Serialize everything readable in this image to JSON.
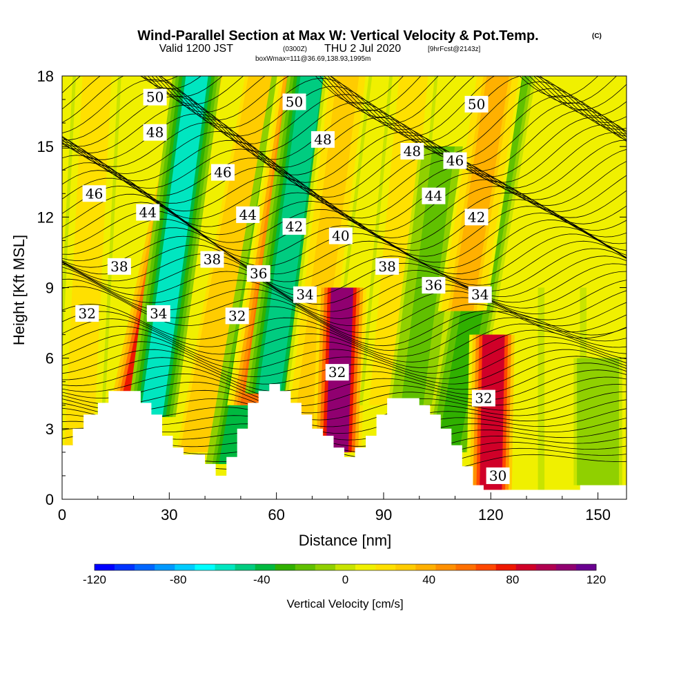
{
  "header": {
    "title": "Wind-Parallel Section at Max W: Vertical Velocity & Pot.Temp.",
    "copyright": "(C)",
    "valid_prefix": "Valid 1200 JST",
    "valid_z": "(0300Z)",
    "valid_date": "THU 2 Jul 2020",
    "forecast": "[9hrFcst@2143z]",
    "boxinfo": "boxWmax=111@36.69,138.93,1995m"
  },
  "chart_data": {
    "type": "heatmap",
    "xlabel": "Distance [nm]",
    "ylabel": "Height [Kft MSL]",
    "xlim": [
      0,
      158
    ],
    "ylim": [
      0,
      18
    ],
    "x_ticks": [
      0,
      30,
      60,
      90,
      120,
      150
    ],
    "y_ticks": [
      0,
      3,
      6,
      9,
      12,
      15,
      18
    ],
    "colorbar": {
      "label": "Vertical Velocity [cm/s]",
      "ticks": [
        -120,
        -80,
        -40,
        0,
        40,
        80,
        120
      ],
      "range": [
        -120,
        120
      ],
      "step": 10,
      "colors": [
        "#0000ff",
        "#0033ff",
        "#0066ff",
        "#0099ff",
        "#00ccff",
        "#00ffff",
        "#00e6c0",
        "#00cc80",
        "#00b940",
        "#30b000",
        "#60c000",
        "#90d000",
        "#c8e400",
        "#f0f000",
        "#ffe000",
        "#ffcc00",
        "#ffb000",
        "#ff9000",
        "#ff7000",
        "#ff4800",
        "#ee1800",
        "#d00028",
        "#b00050",
        "#900070",
        "#6a0090"
      ]
    },
    "terrain_kft": [
      [
        0,
        2.3
      ],
      [
        3,
        2.3
      ],
      [
        3,
        3
      ],
      [
        6,
        3
      ],
      [
        6,
        3.6
      ],
      [
        10,
        3.6
      ],
      [
        10,
        4.1
      ],
      [
        13,
        4.1
      ],
      [
        13,
        4.6
      ],
      [
        22,
        4.6
      ],
      [
        22,
        4.1
      ],
      [
        25,
        4.1
      ],
      [
        25,
        3.6
      ],
      [
        28,
        3.6
      ],
      [
        28,
        2.7
      ],
      [
        31,
        2.7
      ],
      [
        31,
        2.2
      ],
      [
        34,
        2.2
      ],
      [
        34,
        1.9
      ],
      [
        40,
        1.9
      ],
      [
        40,
        1.5
      ],
      [
        43,
        1.5
      ],
      [
        43,
        1.0
      ],
      [
        46,
        1.0
      ],
      [
        46,
        1.8
      ],
      [
        49,
        1.8
      ],
      [
        49,
        3.0
      ],
      [
        52,
        3.0
      ],
      [
        52,
        4.1
      ],
      [
        55,
        4.1
      ],
      [
        55,
        4.6
      ],
      [
        58,
        4.6
      ],
      [
        58,
        4.9
      ],
      [
        61,
        4.9
      ],
      [
        61,
        4.6
      ],
      [
        64,
        4.6
      ],
      [
        64,
        4.1
      ],
      [
        67,
        4.1
      ],
      [
        67,
        3.6
      ],
      [
        70,
        3.6
      ],
      [
        70,
        3.0
      ],
      [
        73,
        3.0
      ],
      [
        73,
        2.7
      ],
      [
        76,
        2.7
      ],
      [
        76,
        2.2
      ],
      [
        79,
        2.2
      ],
      [
        79,
        1.8
      ],
      [
        82,
        1.8
      ],
      [
        82,
        2.2
      ],
      [
        85,
        2.2
      ],
      [
        85,
        2.7
      ],
      [
        88,
        2.7
      ],
      [
        88,
        3.6
      ],
      [
        91,
        3.6
      ],
      [
        91,
        4.3
      ],
      [
        100,
        4.3
      ],
      [
        100,
        4.0
      ],
      [
        103,
        4.0
      ],
      [
        103,
        3.6
      ],
      [
        106,
        3.6
      ],
      [
        106,
        3.0
      ],
      [
        109,
        3.0
      ],
      [
        109,
        2.3
      ],
      [
        112,
        2.3
      ],
      [
        112,
        1.4
      ],
      [
        115,
        1.4
      ],
      [
        115,
        0.6
      ],
      [
        118,
        0.6
      ],
      [
        118,
        0.4
      ],
      [
        145,
        0.4
      ],
      [
        145,
        0.6
      ],
      [
        158,
        0.6
      ]
    ],
    "w_bands": [
      {
        "x": 4,
        "y0": 0,
        "y1": 18,
        "w": 22,
        "tilt": -0.08
      },
      {
        "x": 18,
        "y0": 3,
        "y1": 18,
        "w": 80,
        "tilt": -0.35
      },
      {
        "x": 25,
        "y0": 3.5,
        "y1": 18,
        "w": -60,
        "tilt": -0.22
      },
      {
        "x": 37,
        "y0": 2,
        "y1": 18,
        "w": 35,
        "tilt": -0.3
      },
      {
        "x": 47,
        "y0": 1.5,
        "y1": 18,
        "w": -38,
        "tilt": -0.28
      },
      {
        "x": 53,
        "y0": 4,
        "y1": 18,
        "w": 65,
        "tilt": -0.25
      },
      {
        "x": 58,
        "y0": 4.5,
        "y1": 18,
        "w": -52,
        "tilt": -0.22
      },
      {
        "x": 68,
        "y0": 3,
        "y1": 18,
        "w": 30,
        "tilt": -0.2
      },
      {
        "x": 77,
        "y0": 2,
        "y1": 9,
        "w": 111,
        "tilt": -0.05
      },
      {
        "x": 90,
        "y0": 4,
        "y1": 18,
        "w": 25,
        "tilt": -0.15
      },
      {
        "x": 98,
        "y0": 4,
        "y1": 15,
        "w": -20,
        "tilt": -0.2
      },
      {
        "x": 108,
        "y0": 2,
        "y1": 18,
        "w": -32,
        "tilt": -0.28
      },
      {
        "x": 112,
        "y0": 8,
        "y1": 18,
        "w": 45,
        "tilt": -0.25
      },
      {
        "x": 120,
        "y0": 0.4,
        "y1": 7,
        "w": 90,
        "tilt": -0.03
      },
      {
        "x": 140,
        "y0": 0.4,
        "y1": 9,
        "w": 12,
        "tilt": 0
      },
      {
        "x": 150,
        "y0": 0.6,
        "y1": 6,
        "w": -15,
        "tilt": 0
      }
    ],
    "theta_labels": [
      {
        "v": "50",
        "x": 26,
        "y": 17.1
      },
      {
        "v": "50",
        "x": 65,
        "y": 16.9
      },
      {
        "v": "50",
        "x": 116,
        "y": 16.8
      },
      {
        "v": "48",
        "x": 26,
        "y": 15.6
      },
      {
        "v": "48",
        "x": 73,
        "y": 15.3
      },
      {
        "v": "48",
        "x": 98,
        "y": 14.8
      },
      {
        "v": "46",
        "x": 9,
        "y": 13.0
      },
      {
        "v": "46",
        "x": 45,
        "y": 13.9
      },
      {
        "v": "46",
        "x": 110,
        "y": 14.4
      },
      {
        "v": "44",
        "x": 24,
        "y": 12.2
      },
      {
        "v": "44",
        "x": 52,
        "y": 12.1
      },
      {
        "v": "44",
        "x": 104,
        "y": 12.9
      },
      {
        "v": "42",
        "x": 65,
        "y": 11.6
      },
      {
        "v": "42",
        "x": 116,
        "y": 12.0
      },
      {
        "v": "40",
        "x": 78,
        "y": 11.2
      },
      {
        "v": "38",
        "x": 16,
        "y": 9.9
      },
      {
        "v": "38",
        "x": 42,
        "y": 10.2
      },
      {
        "v": "38",
        "x": 91,
        "y": 9.9
      },
      {
        "v": "36",
        "x": 55,
        "y": 9.6
      },
      {
        "v": "36",
        "x": 104,
        "y": 9.1
      },
      {
        "v": "34",
        "x": 27,
        "y": 7.9
      },
      {
        "v": "34",
        "x": 68,
        "y": 8.7
      },
      {
        "v": "34",
        "x": 117,
        "y": 8.7
      },
      {
        "v": "32",
        "x": 7,
        "y": 7.9
      },
      {
        "v": "32",
        "x": 49,
        "y": 7.8
      },
      {
        "v": "32",
        "x": 77,
        "y": 5.4
      },
      {
        "v": "32",
        "x": 118,
        "y": 4.3
      },
      {
        "v": "30",
        "x": 122,
        "y": 1.0
      }
    ]
  }
}
